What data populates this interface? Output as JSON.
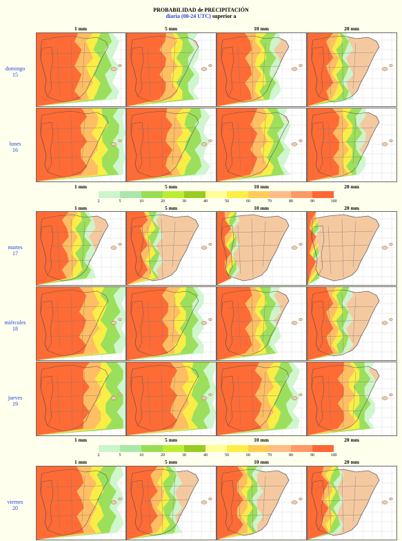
{
  "title": {
    "line1": "PROBABILIDAD de PRECIPITACIÓN",
    "line2_blue": "diaria (00-24 UTC)",
    "line2_black": "superior a"
  },
  "columns": [
    "1 mm",
    "5 mm",
    "10 mm",
    "20 mm"
  ],
  "days": [
    {
      "name": "domingo",
      "num": "15",
      "levels": [
        0.85,
        0.75,
        0.65,
        0.45
      ]
    },
    {
      "name": "lunes",
      "num": "16",
      "levels": [
        0.95,
        0.85,
        0.75,
        0.6
      ]
    },
    {
      "name": "martes",
      "num": "17",
      "levels": [
        0.6,
        0.35,
        0.2,
        0.1
      ]
    },
    {
      "name": "miércoles",
      "num": "18",
      "levels": [
        0.95,
        0.8,
        0.65,
        0.45
      ]
    },
    {
      "name": "jueves",
      "num": "19",
      "levels": [
        1.0,
        0.95,
        0.85,
        0.7
      ]
    },
    {
      "name": "viernes",
      "num": "20",
      "levels": [
        0.9,
        0.55,
        0.45,
        0.35
      ]
    }
  ],
  "legend": {
    "ticks": [
      "2",
      "5",
      "10",
      "20",
      "30",
      "40",
      "50",
      "60",
      "70",
      "80",
      "90",
      "100"
    ],
    "colors": [
      "#ccf5cc",
      "#aae8aa",
      "#99dd55",
      "#bbee33",
      "#99cc22",
      "#ffff99",
      "#ffee44",
      "#ffcc55",
      "#ffbb88",
      "#ff9966",
      "#ff6633"
    ]
  }
}
